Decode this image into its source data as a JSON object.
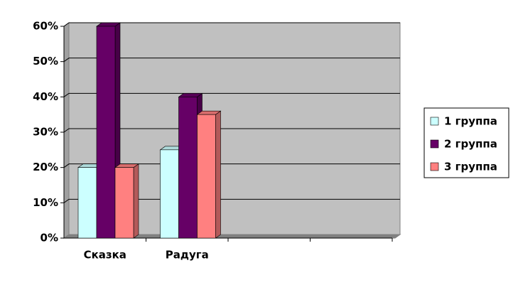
{
  "chart_data": {
    "type": "bar3d",
    "categories": [
      "Сказка",
      "Радуга",
      null,
      null
    ],
    "series": [
      {
        "name": "1 группа",
        "color": "#ccffff",
        "values": [
          20,
          25,
          null,
          null
        ]
      },
      {
        "name": "2 группа",
        "color": "#660066",
        "values": [
          60,
          40,
          null,
          null
        ]
      },
      {
        "name": "3 группа",
        "color": "#ff8080",
        "values": [
          20,
          35,
          null,
          null
        ]
      }
    ],
    "ylim": [
      0,
      60
    ],
    "yticks": [
      {
        "value": 0,
        "label": "0%"
      },
      {
        "value": 10,
        "label": "10%"
      },
      {
        "value": 20,
        "label": "20%"
      },
      {
        "value": 30,
        "label": "30%"
      },
      {
        "value": 40,
        "label": "40%"
      },
      {
        "value": 50,
        "label": "50%"
      },
      {
        "value": 60,
        "label": "60%"
      }
    ],
    "grid": true,
    "legend": "right"
  }
}
